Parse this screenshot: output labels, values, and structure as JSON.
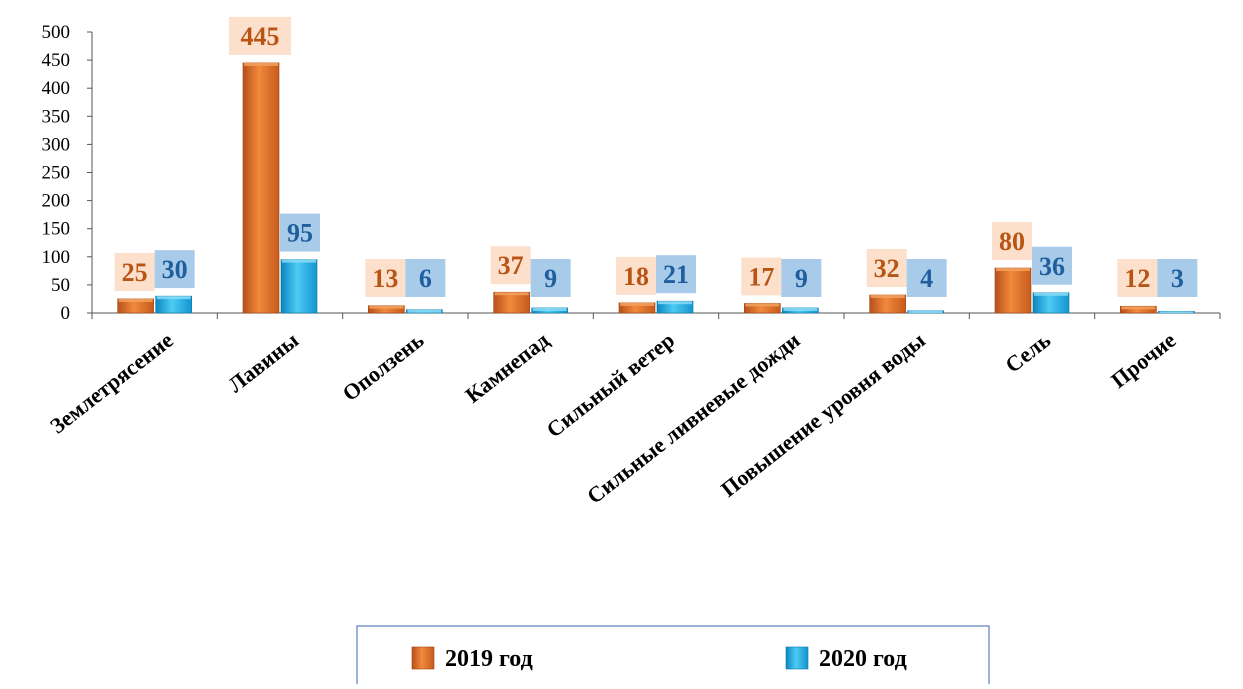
{
  "chart_data": {
    "type": "bar",
    "categories": [
      "Землетрясение",
      "Лавины",
      "Оползень",
      "Камнепад",
      "Сильный ветер",
      "Сильные ливневые дожди",
      "Повышение уровня воды",
      "Сель",
      "Прочие"
    ],
    "series": [
      {
        "name": "2019 год",
        "values": [
          25,
          445,
          13,
          37,
          18,
          17,
          32,
          80,
          12
        ]
      },
      {
        "name": "2020 год",
        "values": [
          30,
          95,
          6,
          9,
          21,
          9,
          4,
          36,
          3
        ]
      }
    ],
    "ylim": [
      0,
      500
    ],
    "yticks": [
      0,
      50,
      100,
      150,
      200,
      250,
      300,
      350,
      400,
      450,
      500
    ],
    "grid": false,
    "legend": "bottom",
    "colors": {
      "series_2019": "#E06A23",
      "series_2019_light": "#F4A15E",
      "series_2019_label": "#B85414",
      "series_2019_label_bg": "#FCE0CC",
      "series_2020": "#1BA9E1",
      "series_2020_light": "#8ADCF7",
      "series_2020_label": "#1F5F9E",
      "series_2020_label_bg": "#A9CBEA"
    }
  }
}
